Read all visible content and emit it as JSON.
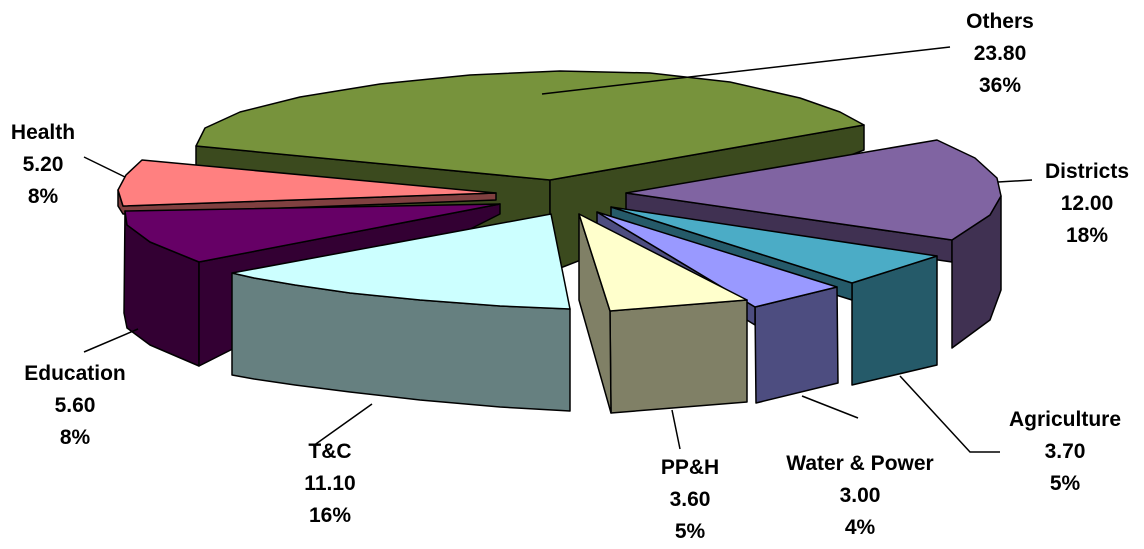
{
  "chart_data": {
    "type": "pie",
    "style": "3d-exploded",
    "legend": "none",
    "slices": [
      {
        "name": "Others",
        "value": "23.80",
        "percent": "36%",
        "top_color": "#77933C",
        "side_color": "#3B4A1E"
      },
      {
        "name": "Districts",
        "value": "12.00",
        "percent": "18%",
        "top_color": "#8064A2",
        "side_color": "#403152"
      },
      {
        "name": "Agriculture",
        "value": "3.70",
        "percent": "5%",
        "top_color": "#4BACC6",
        "side_color": "#255A69"
      },
      {
        "name": "Water & Power",
        "value": "3.00",
        "percent": "4%",
        "top_color": "#9999FF",
        "side_color": "#4D4D80"
      },
      {
        "name": "PP&H",
        "value": "3.60",
        "percent": "5%",
        "top_color": "#FFFFCC",
        "side_color": "#808066"
      },
      {
        "name": "T&C",
        "value": "11.10",
        "percent": "16%",
        "top_color": "#CCFFFF",
        "side_color": "#668080"
      },
      {
        "name": "Education",
        "value": "5.60",
        "percent": "8%",
        "top_color": "#660066",
        "side_color": "#330033"
      },
      {
        "name": "Health",
        "value": "5.20",
        "percent": "8%",
        "top_color": "#FF8080",
        "side_color": "#804040"
      }
    ]
  }
}
